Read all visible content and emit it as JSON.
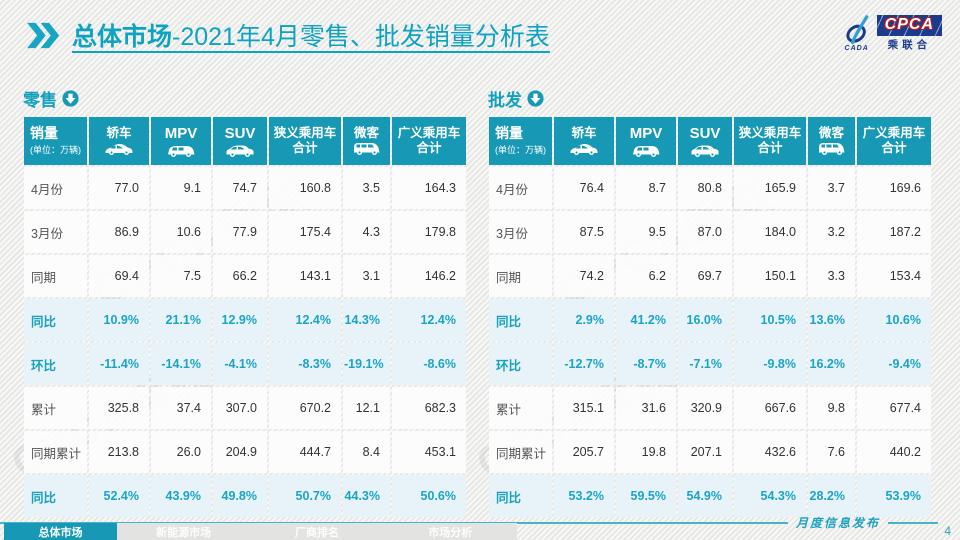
{
  "page": {
    "title_prefix": "总体市场",
    "title_rest": "-2021年4月零售、批发销量分析表",
    "watermark": "CPCA乘联",
    "colors": {
      "accent": "#1799B5",
      "title_teal": "#0FA3C2",
      "highlight_text": "#1BA4C6",
      "highlight_bg": "#E7F3F8",
      "logo_navy": "#1B3C8C",
      "page_bg": "#EFEFEE"
    }
  },
  "logo": {
    "swoosh_icon": "cada-swoosh-icon",
    "cada": "CADA",
    "cpca": "CPCA",
    "subtitle": "乘联合"
  },
  "chart_data": [
    {
      "type": "table",
      "title": "零售",
      "corner_label": "销量",
      "unit_note": "(单位：万辆)",
      "columns": [
        {
          "label": "轿车",
          "icon": "sedan-icon",
          "latin": false
        },
        {
          "label": "MPV",
          "icon": "mpv-icon",
          "latin": true
        },
        {
          "label": "SUV",
          "icon": "suv-icon",
          "latin": true
        },
        {
          "label": "狭义乘用车合计",
          "icon": null,
          "latin": false
        },
        {
          "label": "微客",
          "icon": "microvan-icon",
          "latin": false
        },
        {
          "label": "广义乘用车合计",
          "icon": null,
          "latin": false
        }
      ],
      "rows": [
        {
          "label": "4月份",
          "values": [
            "77.0",
            "9.1",
            "74.7",
            "160.8",
            "3.5",
            "164.3"
          ],
          "highlight": false
        },
        {
          "label": "3月份",
          "values": [
            "86.9",
            "10.6",
            "77.9",
            "175.4",
            "4.3",
            "179.8"
          ],
          "highlight": false
        },
        {
          "label": "同期",
          "values": [
            "69.4",
            "7.5",
            "66.2",
            "143.1",
            "3.1",
            "146.2"
          ],
          "highlight": false
        },
        {
          "label": "同比",
          "values": [
            "10.9%",
            "21.1%",
            "12.9%",
            "12.4%",
            "14.3%",
            "12.4%"
          ],
          "highlight": true
        },
        {
          "label": "环比",
          "values": [
            "-11.4%",
            "-14.1%",
            "-4.1%",
            "-8.3%",
            "-19.1%",
            "-8.6%"
          ],
          "highlight": true
        },
        {
          "label": "累计",
          "values": [
            "325.8",
            "37.4",
            "307.0",
            "670.2",
            "12.1",
            "682.3"
          ],
          "highlight": false
        },
        {
          "label": "同期累计",
          "values": [
            "213.8",
            "26.0",
            "204.9",
            "444.7",
            "8.4",
            "453.1"
          ],
          "highlight": false
        },
        {
          "label": "同比",
          "values": [
            "52.4%",
            "43.9%",
            "49.8%",
            "50.7%",
            "44.3%",
            "50.6%"
          ],
          "highlight": true
        }
      ]
    },
    {
      "type": "table",
      "title": "批发",
      "corner_label": "销量",
      "unit_note": "(单位：万辆)",
      "columns": [
        {
          "label": "轿车",
          "icon": "sedan-icon",
          "latin": false
        },
        {
          "label": "MPV",
          "icon": "mpv-icon",
          "latin": true
        },
        {
          "label": "SUV",
          "icon": "suv-icon",
          "latin": true
        },
        {
          "label": "狭义乘用车合计",
          "icon": null,
          "latin": false
        },
        {
          "label": "微客",
          "icon": "microvan-icon",
          "latin": false
        },
        {
          "label": "广义乘用车合计",
          "icon": null,
          "latin": false
        }
      ],
      "rows": [
        {
          "label": "4月份",
          "values": [
            "76.4",
            "8.7",
            "80.8",
            "165.9",
            "3.7",
            "169.6"
          ],
          "highlight": false
        },
        {
          "label": "3月份",
          "values": [
            "87.5",
            "9.5",
            "87.0",
            "184.0",
            "3.2",
            "187.2"
          ],
          "highlight": false
        },
        {
          "label": "同期",
          "values": [
            "74.2",
            "6.2",
            "69.7",
            "150.1",
            "3.3",
            "153.4"
          ],
          "highlight": false
        },
        {
          "label": "同比",
          "values": [
            "2.9%",
            "41.2%",
            "16.0%",
            "10.5%",
            "13.6%",
            "10.6%"
          ],
          "highlight": true
        },
        {
          "label": "环比",
          "values": [
            "-12.7%",
            "-8.7%",
            "-7.1%",
            "-9.8%",
            "16.2%",
            "-9.4%"
          ],
          "highlight": true
        },
        {
          "label": "累计",
          "values": [
            "315.1",
            "31.6",
            "320.9",
            "667.6",
            "9.8",
            "677.4"
          ],
          "highlight": false
        },
        {
          "label": "同期累计",
          "values": [
            "205.7",
            "19.8",
            "207.1",
            "432.6",
            "7.6",
            "440.2"
          ],
          "highlight": false
        },
        {
          "label": "同比",
          "values": [
            "53.2%",
            "59.5%",
            "54.9%",
            "54.3%",
            "28.2%",
            "53.9%"
          ],
          "highlight": true
        }
      ]
    }
  ],
  "footer": {
    "note": "月度信息发布",
    "page_number": "4",
    "tabs": [
      {
        "label": "总体市场",
        "active": true
      },
      {
        "label": "新能源市场",
        "active": false
      },
      {
        "label": "厂商排名",
        "active": false
      },
      {
        "label": "市场分析",
        "active": false
      }
    ]
  }
}
